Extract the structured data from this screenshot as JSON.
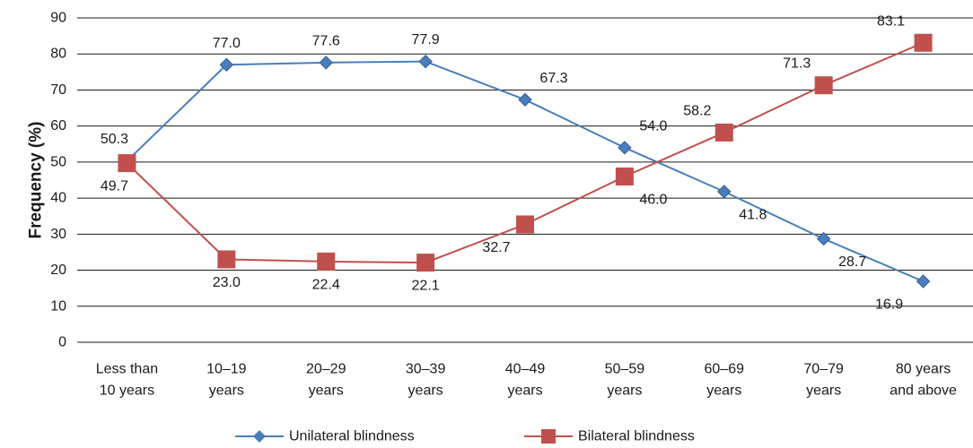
{
  "chart_data": {
    "type": "line",
    "title": "",
    "xlabel": "",
    "ylabel": "Frequency (%)",
    "ylim": [
      0,
      90
    ],
    "yticks": [
      0,
      10,
      20,
      30,
      40,
      50,
      60,
      70,
      80,
      90
    ],
    "grid": true,
    "legend_position": "bottom",
    "categories": [
      [
        "Less than",
        "10 years"
      ],
      [
        "10–19",
        "years"
      ],
      [
        "20–29",
        "years"
      ],
      [
        "30–39",
        "years"
      ],
      [
        "40–49",
        "years"
      ],
      [
        "50–59",
        "years"
      ],
      [
        "60–69",
        "years"
      ],
      [
        "70–79",
        "years"
      ],
      [
        "80 years",
        "and above"
      ]
    ],
    "series": [
      {
        "name": "Unilateral blindness",
        "color": "#4a7ebb",
        "marker": "diamond",
        "values": [
          50.3,
          77.0,
          77.6,
          77.9,
          67.3,
          54.0,
          41.8,
          28.7,
          16.9
        ],
        "labels": [
          "50.3",
          "77.0",
          "77.6",
          "77.9",
          "67.3",
          "54.0",
          "41.8",
          "28.7",
          "16.9"
        ]
      },
      {
        "name": "Bilateral blindness",
        "color": "#c0504d",
        "marker": "square",
        "values": [
          49.7,
          23.0,
          22.4,
          22.1,
          32.7,
          46.0,
          58.2,
          71.3,
          83.1
        ],
        "labels": [
          "49.7",
          "23.0",
          "22.4",
          "22.1",
          "32.7",
          "46.0",
          "58.2",
          "71.3",
          "83.1"
        ]
      }
    ]
  }
}
